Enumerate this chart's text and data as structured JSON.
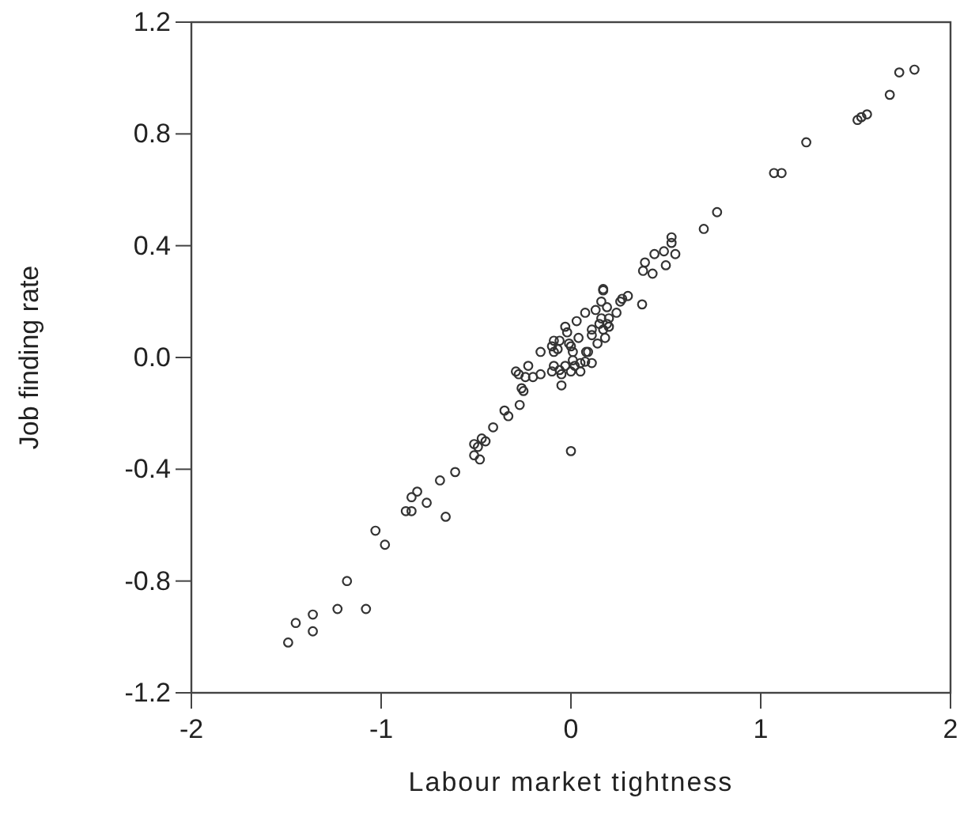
{
  "chart_data": {
    "type": "scatter",
    "xlabel": "Labour market tightness",
    "ylabel": "Job finding rate",
    "xlim": [
      -2,
      2
    ],
    "xticks": [
      -2,
      -1,
      0,
      1,
      2
    ],
    "ylim": [
      -1.2,
      1.2
    ],
    "yticks": [
      {
        "value": 1.2,
        "label": "1.2"
      },
      {
        "value": 0.8,
        "label": "0.8"
      },
      {
        "value": 0.4,
        "label": "0.4"
      },
      {
        "value": 0,
        "label": "0.0"
      },
      {
        "value": -0.4,
        "label": "-0.4"
      },
      {
        "value": -0.8,
        "label": "-0.8"
      },
      {
        "value": -1.2,
        "label": "-1.2"
      }
    ],
    "grid": false,
    "marker": "circle",
    "series": [
      {
        "color": "#333333",
        "x": [
          1.73,
          1.81,
          1.68,
          1.51,
          1.53,
          1.56,
          1.24,
          1.07,
          1.11,
          0.77,
          0.7,
          0.53,
          0.53,
          0.55,
          0.49,
          0.5,
          0.44,
          0.39,
          0.38,
          0.43,
          0.375,
          0.17,
          0.17,
          0.3,
          0.27,
          0.26,
          0.16,
          0.19,
          0.24,
          0.13,
          0.075,
          0.16,
          0.2,
          0.15,
          0.19,
          0.2,
          0.17,
          0.03,
          -0.03,
          -0.02,
          0.11,
          0.11,
          0.04,
          0.18,
          0.14,
          0.09,
          0.08,
          -0.01,
          -0.06,
          -0.09,
          -0.1,
          -0.07,
          -0.09,
          0.0,
          -0.16,
          0.01,
          0.01,
          0.05,
          0.11,
          0.075,
          -0.03,
          0.02,
          -0.09,
          -0.225,
          -0.06,
          0.0,
          0.05,
          -0.05,
          -0.29,
          -0.275,
          -0.24,
          -0.2,
          -0.16,
          -0.1,
          -0.05,
          -0.26,
          -0.25,
          -0.27,
          -0.35,
          -0.33,
          -0.41,
          -0.47,
          -0.45,
          -0.51,
          -0.49,
          -0.51,
          -0.48,
          -0.61,
          0.0,
          -0.66,
          -0.69,
          -0.76,
          -0.81,
          -0.84,
          -0.87,
          -0.84,
          -0.98,
          -1.03,
          -1.18,
          -1.08,
          -1.23,
          -1.36,
          -1.36,
          -1.45,
          -1.49
        ],
        "values": [
          1.02,
          1.03,
          0.94,
          0.85,
          0.86,
          0.87,
          0.77,
          0.66,
          0.66,
          0.52,
          0.46,
          0.43,
          0.41,
          0.37,
          0.38,
          0.33,
          0.37,
          0.34,
          0.31,
          0.3,
          0.19,
          0.245,
          0.24,
          0.22,
          0.21,
          0.2,
          0.2,
          0.18,
          0.16,
          0.17,
          0.16,
          0.14,
          0.14,
          0.12,
          0.12,
          0.11,
          0.1,
          0.13,
          0.11,
          0.09,
          0.1,
          0.08,
          0.07,
          0.07,
          0.05,
          0.02,
          0.02,
          0.05,
          0.06,
          0.06,
          0.04,
          0.03,
          0.02,
          0.04,
          0.02,
          0.02,
          -0.01,
          -0.02,
          -0.02,
          -0.015,
          -0.03,
          -0.03,
          -0.03,
          -0.03,
          -0.045,
          -0.05,
          -0.05,
          -0.06,
          -0.05,
          -0.06,
          -0.07,
          -0.07,
          -0.06,
          -0.05,
          -0.1,
          -0.11,
          -0.12,
          -0.17,
          -0.19,
          -0.21,
          -0.25,
          -0.29,
          -0.3,
          -0.31,
          -0.32,
          -0.35,
          -0.365,
          -0.41,
          -0.335,
          -0.57,
          -0.44,
          -0.52,
          -0.48,
          -0.5,
          -0.55,
          -0.55,
          -0.67,
          -0.62,
          -0.8,
          -0.9,
          -0.9,
          -0.92,
          -0.98,
          -0.95,
          -1.02
        ]
      }
    ]
  }
}
